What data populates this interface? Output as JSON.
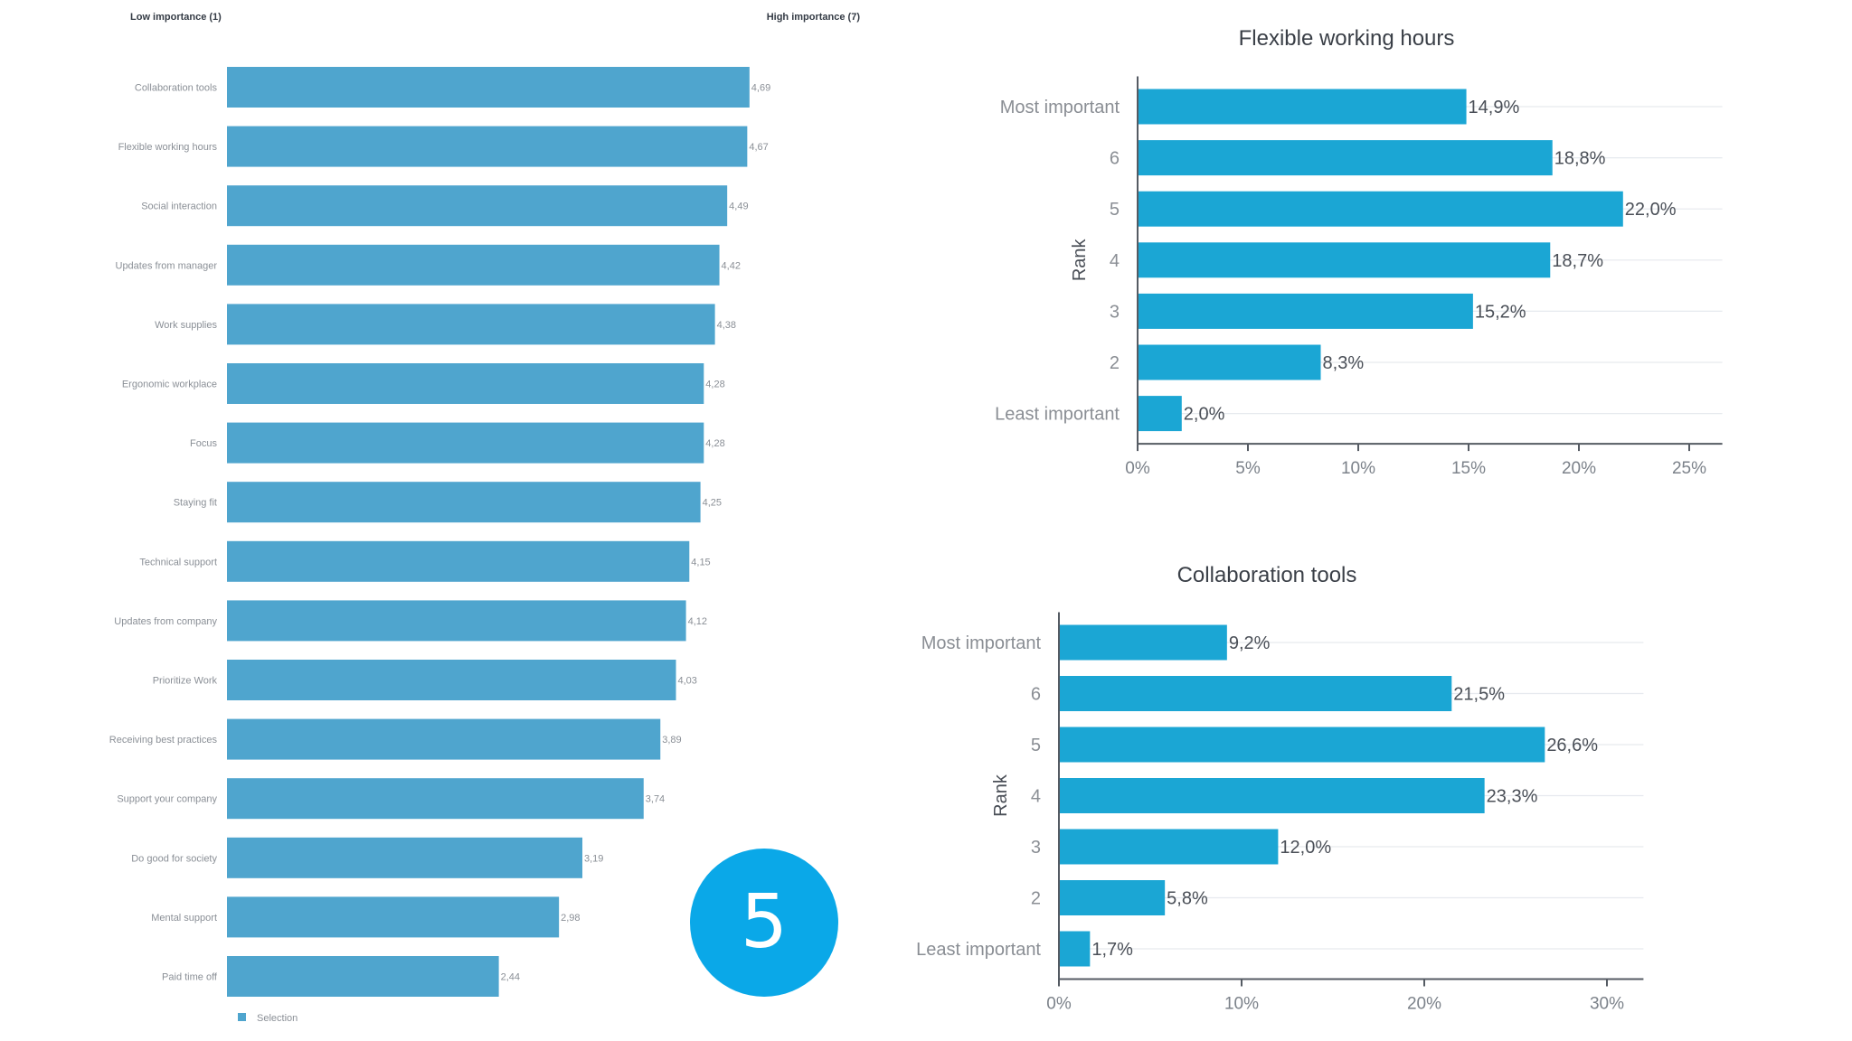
{
  "badge": "5",
  "colors": {
    "left_bar": "#4fa5ce",
    "right_bar": "#1ba6d4",
    "badge": "#0aa8e8"
  },
  "chart_data": [
    {
      "type": "bar",
      "orientation": "horizontal",
      "header_left": "Low importance (1)",
      "header_right": "High importance (7)",
      "categories": [
        "Collaboration tools",
        "Flexible working hours",
        "Social interaction",
        "Updates from manager",
        "Work supplies",
        "Ergonomic workplace",
        "Focus",
        "Staying fit",
        "Technical support",
        "Updates from company",
        "Prioritize Work",
        "Receiving best practices",
        "Support your company",
        "Do good for society",
        "Mental support",
        "Paid time off"
      ],
      "values": [
        4.69,
        4.67,
        4.49,
        4.42,
        4.38,
        4.28,
        4.28,
        4.25,
        4.15,
        4.12,
        4.03,
        3.89,
        3.74,
        3.19,
        2.98,
        2.44
      ],
      "value_labels": [
        "4,69",
        "4,67",
        "4,49",
        "4,42",
        "4,38",
        "4,28",
        "4,28",
        "4,25",
        "4,15",
        "4,12",
        "4,03",
        "3,89",
        "3,74",
        "3,19",
        "2,98",
        "2,44"
      ],
      "xlim": [
        0,
        7
      ],
      "legend": "Selection",
      "legend_position": "bottom-left"
    },
    {
      "type": "bar",
      "orientation": "horizontal",
      "title": "Flexible working hours",
      "ylabel": "Rank",
      "categories": [
        "Most important",
        "6",
        "5",
        "4",
        "3",
        "2",
        "Least important"
      ],
      "values": [
        14.9,
        18.8,
        22.0,
        18.7,
        15.2,
        8.3,
        2.0
      ],
      "value_labels": [
        "14,9%",
        "18,8%",
        "22,0%",
        "18,7%",
        "15,2%",
        "8,3%",
        "2,0%"
      ],
      "xlim": [
        0,
        26.5
      ],
      "xticks": [
        0,
        5,
        10,
        15,
        20,
        25
      ],
      "xtick_labels": [
        "0%",
        "5%",
        "10%",
        "15%",
        "20%",
        "25%"
      ],
      "grid": true
    },
    {
      "type": "bar",
      "orientation": "horizontal",
      "title": "Collaboration tools",
      "ylabel": "Rank",
      "categories": [
        "Most important",
        "6",
        "5",
        "4",
        "3",
        "2",
        "Least important"
      ],
      "values": [
        9.2,
        21.5,
        26.6,
        23.3,
        12.0,
        5.8,
        1.7
      ],
      "value_labels": [
        "9,2%",
        "21,5%",
        "26,6%",
        "23,3%",
        "12,0%",
        "5,8%",
        "1,7%"
      ],
      "xlim": [
        0,
        32
      ],
      "xticks": [
        0,
        10,
        20,
        30
      ],
      "xtick_labels": [
        "0%",
        "10%",
        "20%",
        "30%"
      ],
      "grid": true
    }
  ]
}
